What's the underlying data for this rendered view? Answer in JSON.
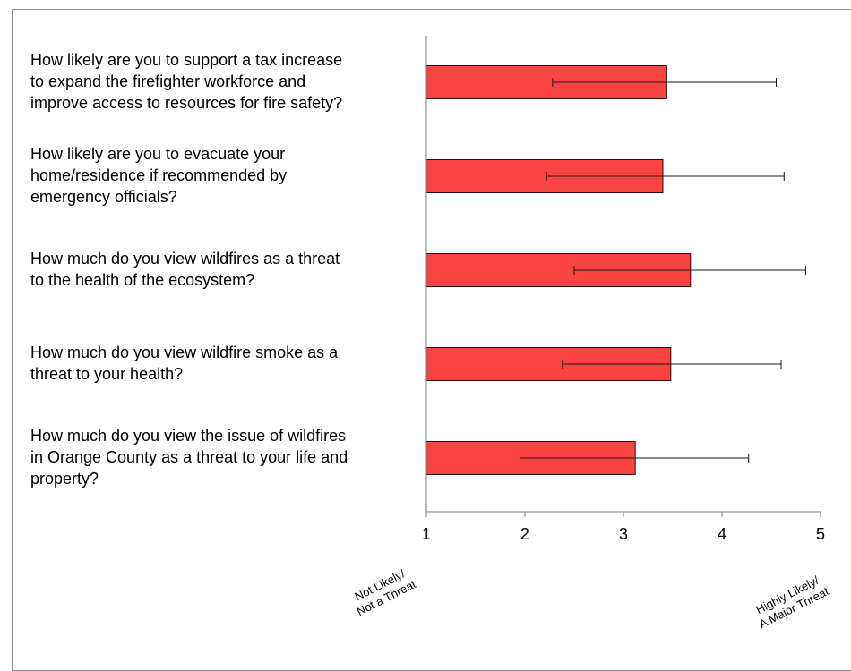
{
  "chart_data": {
    "type": "bar",
    "orientation": "horizontal",
    "categories": [
      "How likely are you to support a tax increase to expand the firefighter workforce and improve access to resources for fire safety?",
      "How likely are you to evacuate your home/residence if recommended by emergency officials?",
      "How much do you view wildfires as a threat to the health of the ecosystem?",
      "How much do you view wildfire smoke as a threat to your health?",
      "How much do you view the issue of wildfires in Orange County as a threat to your life and property?"
    ],
    "category_lines": [
      [
        "How likely are you to support a tax increase",
        "to expand the firefighter workforce and",
        "improve access to resources for fire safety?"
      ],
      [
        "How likely are you to evacuate your",
        "home/residence if recommended by",
        "emergency officials?"
      ],
      [
        "How much do you view wildfires as a threat",
        "to the health of the ecosystem?"
      ],
      [
        "How much do you view wildfire smoke as a",
        "threat to your health?"
      ],
      [
        "How much do you view the issue of wildfires",
        "in Orange County as a threat to your life and",
        "property?"
      ]
    ],
    "values": [
      3.44,
      3.4,
      3.68,
      3.48,
      3.12
    ],
    "error_low": [
      2.28,
      2.22,
      2.5,
      2.38,
      1.95
    ],
    "error_high": [
      4.55,
      4.63,
      4.85,
      4.6,
      4.27
    ],
    "xlim": [
      1,
      5
    ],
    "xticks": [
      "1",
      "2",
      "3",
      "4",
      "5"
    ],
    "axis_end_labels": {
      "left": [
        "Not Likely/",
        "Not a Threat"
      ],
      "right": [
        "Highly Likely/",
        "A Major Threat"
      ]
    },
    "bar_color": "#fa4444",
    "bar_edge_color": "#2b0a0a",
    "grid": false,
    "legend": "none"
  }
}
